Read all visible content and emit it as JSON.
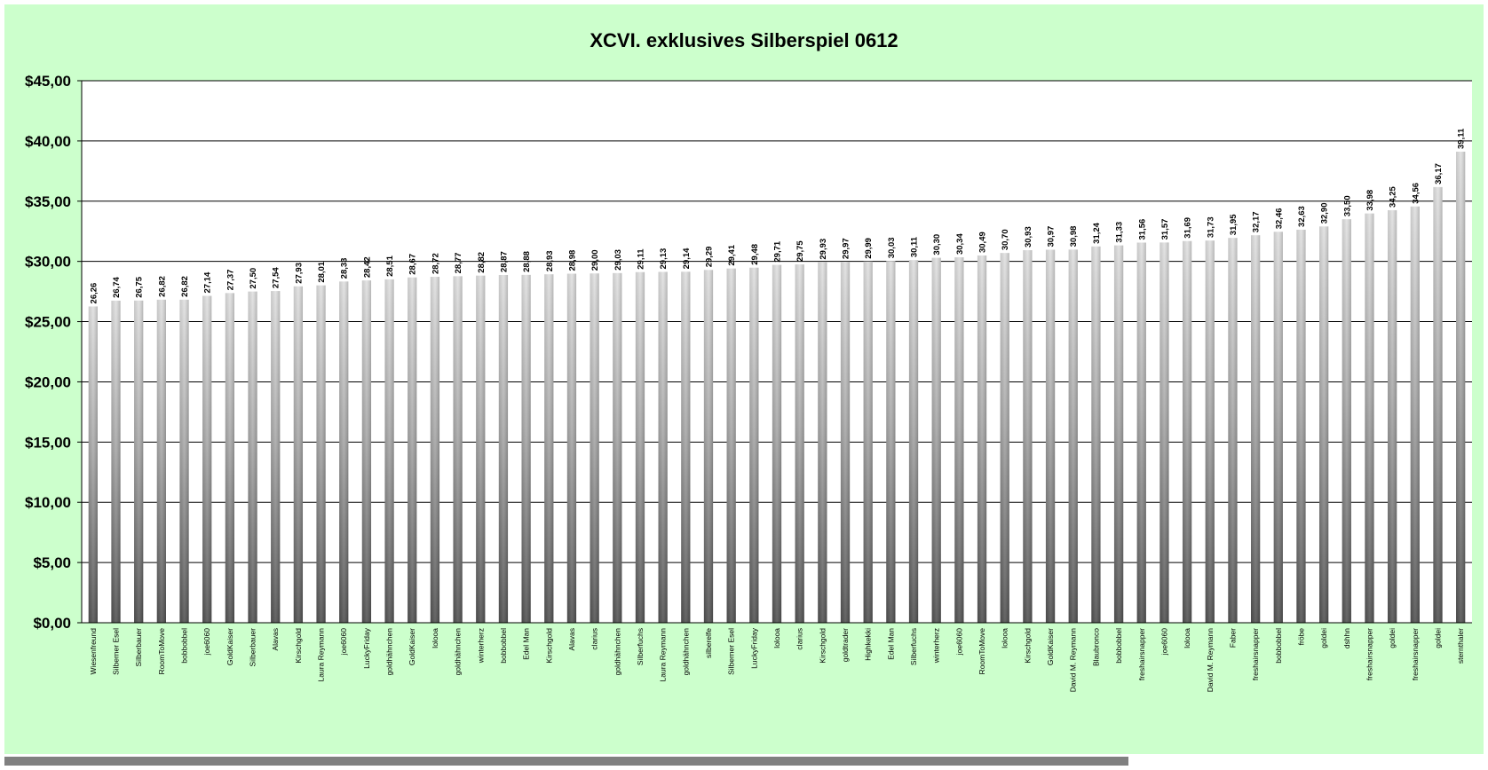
{
  "chart_data": {
    "type": "bar",
    "title": "XCVI. exklusives Silberspiel 0612",
    "xlabel": "",
    "ylabel": "",
    "ylim": [
      0,
      45
    ],
    "yticks": [
      "$0,00",
      "$5,00",
      "$10,00",
      "$15,00",
      "$20,00",
      "$25,00",
      "$30,00",
      "$35,00",
      "$40,00",
      "$45,00"
    ],
    "grid": true,
    "legend": "none",
    "categories": [
      "Wiesenfreund",
      "Silberner Esel",
      "Silberbauer",
      "RoomToMove",
      "bobbobbel",
      "joe6060",
      "GoldKaiser",
      "Silberbauer",
      "Alavas",
      "Kirschgold",
      "Laura Reymann",
      "joe6060",
      "LuckyFriday",
      "goldhähnchen",
      "GoldKaiser",
      "lolooa",
      "goldhähnchen",
      "winterherz",
      "bobbobbel",
      "Edel Man",
      "Kirschgold",
      "Alavas",
      "clarius",
      "goldhähnchen",
      "Silberfuchs",
      "Laura Reymann",
      "goldhähnchen",
      "silberelfe",
      "Silberner Esel",
      "LuckyFriday",
      "lolooa",
      "clarius",
      "Kirschgold",
      "goldtrader",
      "Highkekki",
      "Edel Man",
      "Silberfuchs",
      "winterherz",
      "joe6060",
      "RoomToMove",
      "lolooa",
      "Kirschgold",
      "GoldKaiser",
      "David M. Reymann",
      "Blaubronco",
      "bobbobbel",
      "freshairsnapper",
      "joe6060",
      "lolooa",
      "David M. Reymann",
      "Faber",
      "freshairsnapper",
      "bobbobbel",
      "fröbe",
      "goldei",
      "dshhn",
      "freshairsnapper",
      "goldei",
      "freshairsnapper",
      "goldei",
      "sternthaler"
    ],
    "values": [
      26.26,
      26.74,
      26.75,
      26.82,
      26.82,
      27.14,
      27.37,
      27.5,
      27.54,
      27.93,
      28.01,
      28.33,
      28.42,
      28.51,
      28.67,
      28.72,
      28.77,
      28.82,
      28.87,
      28.88,
      28.93,
      28.98,
      29.0,
      29.03,
      29.11,
      29.13,
      29.14,
      29.29,
      29.41,
      29.48,
      29.71,
      29.75,
      29.93,
      29.97,
      29.99,
      30.03,
      30.11,
      30.3,
      30.34,
      30.49,
      30.7,
      30.93,
      30.97,
      30.98,
      31.24,
      31.33,
      31.56,
      31.57,
      31.69,
      31.73,
      31.95,
      32.17,
      32.46,
      32.63,
      32.9,
      33.5,
      33.98,
      34.25,
      34.56,
      36.17,
      39.11
    ],
    "value_labels": [
      "26,26",
      "26,74",
      "26,75",
      "26,82",
      "26,82",
      "27,14",
      "27,37",
      "27,50",
      "27,54",
      "27,93",
      "28,01",
      "28,33",
      "28,42",
      "28,51",
      "28,67",
      "28,72",
      "28,77",
      "28,82",
      "28,87",
      "28,88",
      "28,93",
      "28,98",
      "29,00",
      "29,03",
      "29,11",
      "29,13",
      "29,14",
      "29,29",
      "29,41",
      "29,48",
      "29,71",
      "29,75",
      "29,93",
      "29,97",
      "29,99",
      "30,03",
      "30,11",
      "30,30",
      "30,34",
      "30,49",
      "30,70",
      "30,93",
      "30,97",
      "30,98",
      "31,24",
      "31,33",
      "31,56",
      "31,57",
      "31,69",
      "31,73",
      "31,95",
      "32,17",
      "32,46",
      "32,63",
      "32,90",
      "33,50",
      "33,98",
      "34,25",
      "34,56",
      "36,17",
      "39,11"
    ],
    "colors": {
      "background": "#ccffcc",
      "plot": "#ffffff",
      "bar_light": "#d4d4d4",
      "bar_dark": "#5a5a5a",
      "grid": "#000000"
    }
  }
}
